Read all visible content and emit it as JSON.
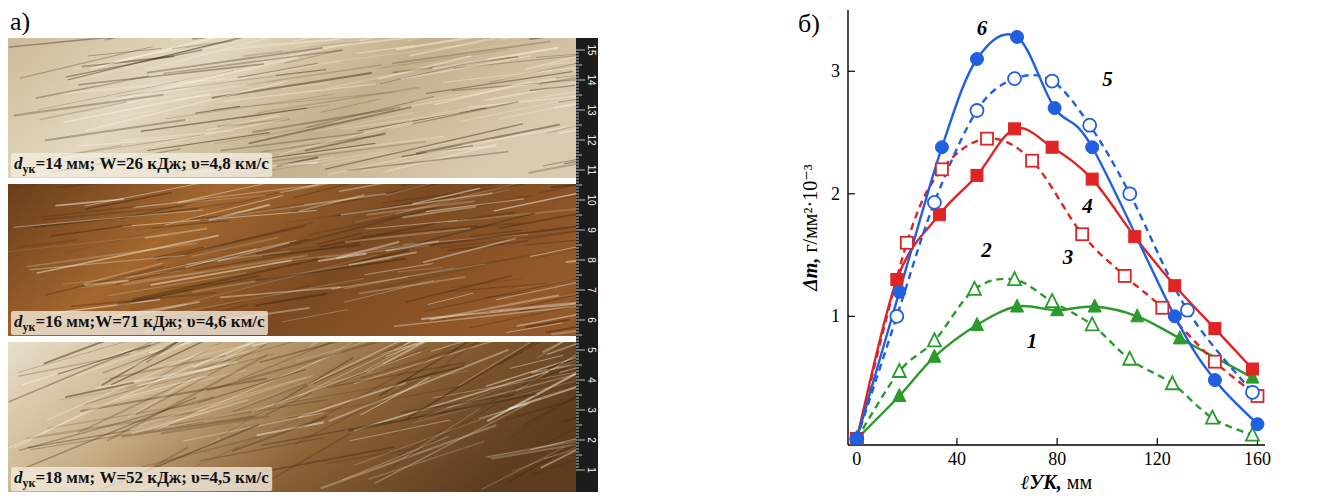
{
  "figure": {
    "panel_a": {
      "label": "а)",
      "photos": [
        {
          "var": "d",
          "sub": "ук",
          "rest": "=14 мм; W=26 кДж; υ=4,8 км/с"
        },
        {
          "var": "d",
          "sub": "ук",
          "rest": "=16 мм;W=71 кДж; υ=4,6 км/с"
        },
        {
          "var": "d",
          "sub": "ук",
          "rest": "=18 мм; W=52 кДж; υ=4,5 км/с"
        }
      ],
      "ruler": [
        15,
        14,
        13,
        12,
        11,
        10,
        9,
        8,
        7,
        6,
        5,
        4,
        3,
        2,
        1
      ]
    }
  },
  "chart_data": {
    "type": "line",
    "panel_label": "б)",
    "x_label": "ℓУК, мм",
    "y_label": "Δm, г/мм²·10⁻³",
    "xlim": [
      -3.5,
      163
    ],
    "ylim": [
      -0.05,
      3.5
    ],
    "xticks": [
      0,
      40,
      80,
      120,
      160
    ],
    "yticks": [
      1,
      2,
      3
    ],
    "grid": false,
    "series": [
      {
        "name": "1",
        "color": "#2a9a2a",
        "marker": "triangle",
        "line_style": "solid",
        "x": [
          0,
          17,
          31,
          48,
          64,
          80,
          95,
          112,
          129,
          158
        ],
        "values": [
          0,
          0.35,
          0.67,
          0.93,
          1.08,
          1.05,
          1.08,
          1.0,
          0.82,
          0.5
        ]
      },
      {
        "name": "2",
        "color": "#2a9a2a",
        "marker": "triangle-open",
        "line_style": "dashed",
        "x": [
          0,
          17,
          31,
          47,
          63,
          78,
          94,
          109,
          126,
          142,
          158
        ],
        "values": [
          0,
          0.55,
          0.8,
          1.22,
          1.3,
          1.12,
          0.93,
          0.65,
          0.45,
          0.17,
          0.03
        ]
      },
      {
        "name": "3",
        "color": "#e02424",
        "marker": "square-open",
        "line_style": "dashed",
        "x": [
          0,
          20,
          34,
          52,
          70,
          90,
          107,
          122,
          143,
          160
        ],
        "values": [
          0,
          1.6,
          2.2,
          2.45,
          2.27,
          1.67,
          1.33,
          1.07,
          0.63,
          0.35
        ]
      },
      {
        "name": "4",
        "color": "#e02424",
        "marker": "square",
        "line_style": "solid",
        "x": [
          0,
          16,
          33,
          48,
          63,
          78,
          94,
          111,
          127,
          143,
          158
        ],
        "values": [
          0,
          1.3,
          1.83,
          2.15,
          2.53,
          2.38,
          2.12,
          1.65,
          1.25,
          0.9,
          0.57
        ]
      },
      {
        "name": "5",
        "color": "#1f5fe0",
        "marker": "circle-open",
        "line_style": "dashed",
        "x": [
          0,
          16,
          31,
          48,
          63,
          78,
          93,
          109,
          132,
          158
        ],
        "values": [
          0,
          1.0,
          1.93,
          2.68,
          2.94,
          2.92,
          2.56,
          2.0,
          1.05,
          0.38
        ]
      },
      {
        "name": "6",
        "color": "#1f5fe0",
        "marker": "circle",
        "line_style": "solid",
        "x": [
          0,
          17,
          34,
          48,
          64,
          79,
          94,
          127,
          143,
          160
        ],
        "values": [
          0,
          1.2,
          2.38,
          3.1,
          3.28,
          2.7,
          2.38,
          1.0,
          0.48,
          0.12
        ]
      }
    ]
  }
}
